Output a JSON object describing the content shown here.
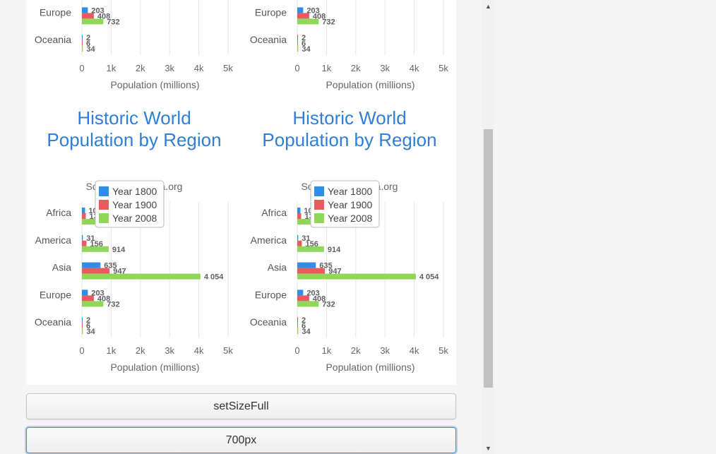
{
  "chart_data": [
    {
      "type": "bar",
      "orientation": "horizontal",
      "title": "Historic World Population by Region",
      "subtitle": "Source: Wikipedia.org",
      "xlabel": "Population (millions)",
      "ylabel": "",
      "xlim": [
        0,
        5000
      ],
      "ticks": [
        "0",
        "1k",
        "2k",
        "3k",
        "4k",
        "5k"
      ],
      "categories": [
        "Africa",
        "America",
        "Asia",
        "Europe",
        "Oceania"
      ],
      "series": [
        {
          "name": "Year 1800",
          "color": "#2f8ee8",
          "values": [
            107,
            31,
            635,
            203,
            2
          ],
          "labels": [
            "107",
            "31",
            "635",
            "203",
            "2"
          ]
        },
        {
          "name": "Year 1900",
          "color": "#e95b5e",
          "values": [
            133,
            156,
            947,
            408,
            6
          ],
          "labels": [
            "133",
            "156",
            "947",
            "408",
            "6"
          ]
        },
        {
          "name": "Year 2008",
          "color": "#90d658",
          "values": [
            973,
            914,
            4054,
            732,
            34
          ],
          "labels": [
            "973",
            "914",
            "4 054",
            "732",
            "34"
          ]
        }
      ],
      "grid": true,
      "legend": "top-right"
    }
  ],
  "buttons": {
    "size_full": "setSizeFull",
    "px700": "700px"
  }
}
